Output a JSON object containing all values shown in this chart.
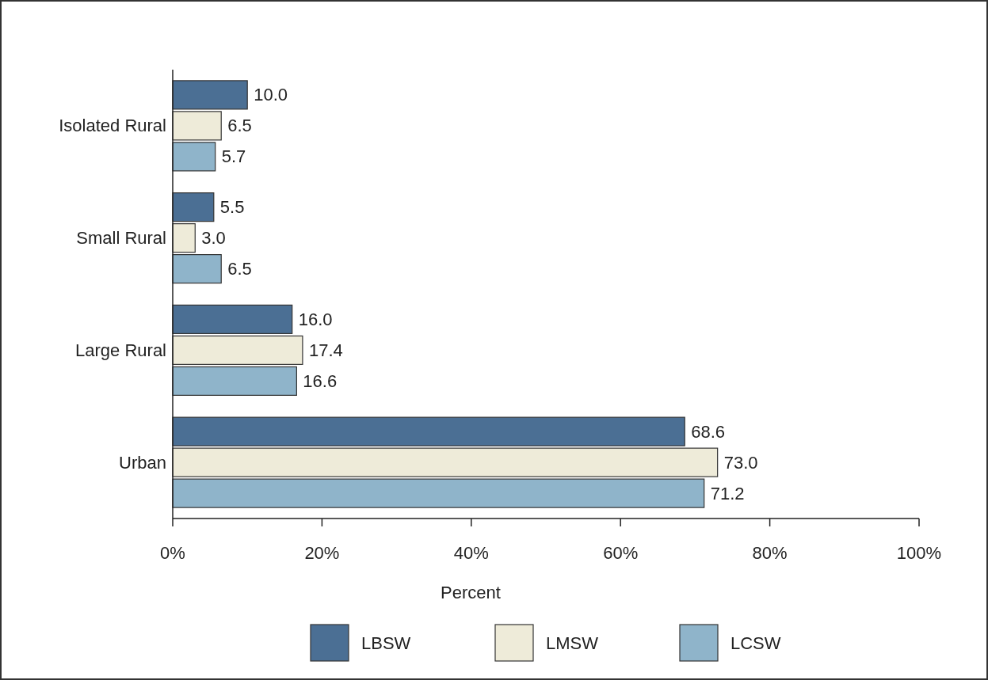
{
  "chart_data": {
    "type": "bar",
    "orientation": "horizontal",
    "xlabel": "Percent",
    "categories": [
      "Isolated Rural",
      "Small Rural",
      "Large Rural",
      "Urban"
    ],
    "series": [
      {
        "name": "LBSW",
        "color": "#4b6f94",
        "values": [
          10.0,
          5.5,
          16.0,
          68.6
        ],
        "value_labels": [
          "10.0",
          "5.5",
          "16.0",
          "68.6"
        ]
      },
      {
        "name": "LMSW",
        "color": "#eeebd9",
        "values": [
          6.5,
          3.0,
          17.4,
          73.0
        ],
        "value_labels": [
          "6.5",
          "3.0",
          "17.4",
          "73.0"
        ]
      },
      {
        "name": "LCSW",
        "color": "#8fb4ca",
        "values": [
          5.7,
          6.5,
          16.6,
          71.2
        ],
        "value_labels": [
          "5.7",
          "6.5",
          "16.6",
          "71.2"
        ]
      }
    ],
    "xlim": [
      0,
      100
    ],
    "xticks": [
      {
        "value": 0,
        "label": "0%"
      },
      {
        "value": 20,
        "label": "20%"
      },
      {
        "value": 40,
        "label": "40%"
      },
      {
        "value": 60,
        "label": "60%"
      },
      {
        "value": 80,
        "label": "80%"
      },
      {
        "value": 100,
        "label": "100%"
      }
    ],
    "grid": false,
    "legend": "bottom"
  }
}
